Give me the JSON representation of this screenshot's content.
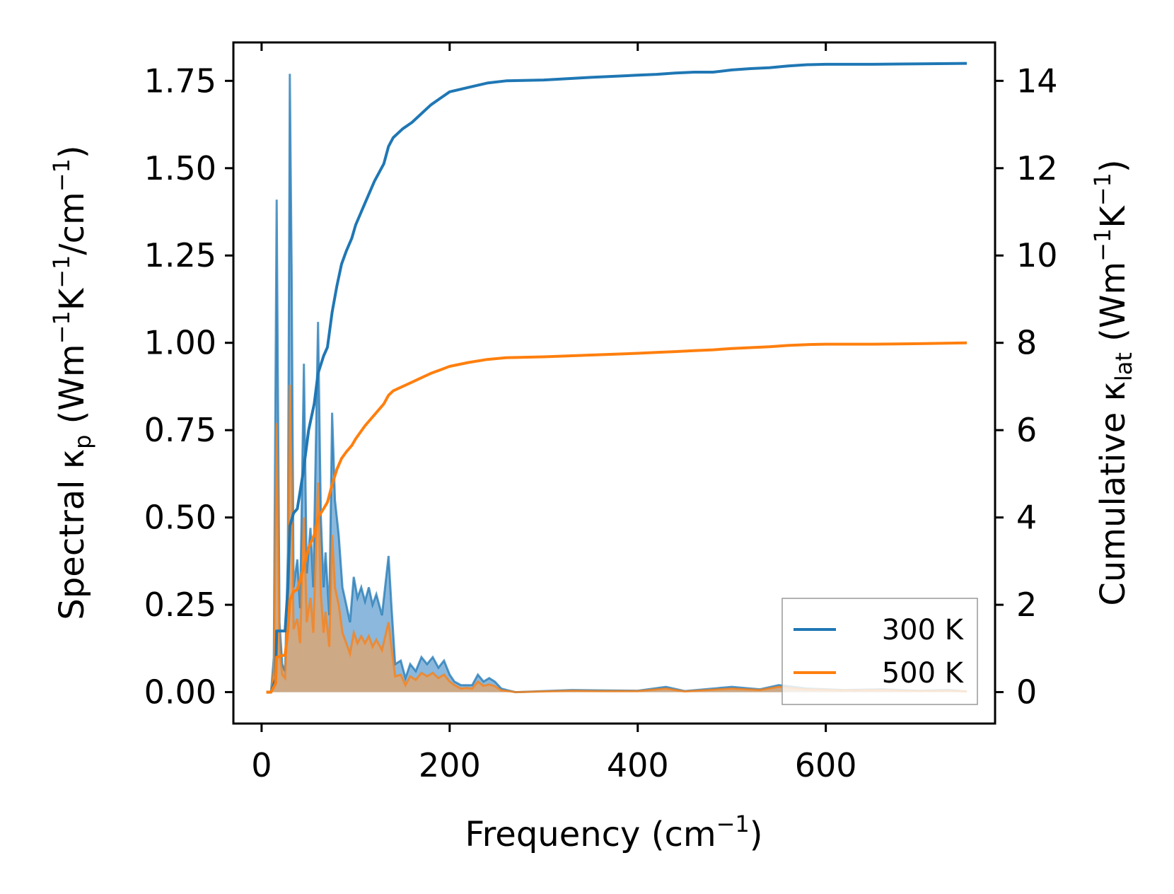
{
  "chart_data": {
    "type": "area",
    "x_axis": {
      "label": "Frequency (cm",
      "label_sup": "−1",
      "label_end": ")",
      "range": [
        -30,
        780
      ],
      "ticks": [
        0,
        200,
        400,
        600
      ],
      "tick_labels": [
        "0",
        "200",
        "400",
        "600"
      ]
    },
    "y_left": {
      "label_parts": [
        "Spectral κ",
        "p",
        " (Wm",
        "−1",
        "K",
        "−1",
        "/cm",
        "−1",
        ")"
      ],
      "range": [
        -0.09,
        1.86
      ],
      "ticks": [
        0,
        0.25,
        0.5,
        0.75,
        1.0,
        1.25,
        1.5,
        1.75
      ],
      "tick_labels": [
        "0.00",
        "0.25",
        "0.50",
        "0.75",
        "1.00",
        "1.25",
        "1.50",
        "1.75"
      ]
    },
    "y_right": {
      "label_parts": [
        "Cumulative κ",
        "lat",
        " (Wm",
        "−1",
        "K",
        "−1",
        ")"
      ],
      "range": [
        -0.72,
        14.88
      ],
      "ticks": [
        0,
        2,
        4,
        6,
        8,
        10,
        12,
        14
      ],
      "tick_labels": [
        "0",
        "2",
        "4",
        "6",
        "8",
        "10",
        "12",
        "14"
      ]
    },
    "legend": {
      "position": "lower-right",
      "entries": [
        "300 K",
        "500 K"
      ]
    },
    "colors": {
      "s300": "#1f77b4",
      "s500": "#ff7f0e",
      "fill300": "#8bb8dc",
      "fill500": "#d8a677"
    },
    "spectral": [
      {
        "name": "300 K",
        "points": [
          [
            5,
            0
          ],
          [
            10,
            0
          ],
          [
            13,
            0.1
          ],
          [
            16,
            1.41
          ],
          [
            19,
            0.2
          ],
          [
            22,
            0.08
          ],
          [
            25,
            0.06
          ],
          [
            28,
            0.4
          ],
          [
            30,
            1.77
          ],
          [
            32,
            1.2
          ],
          [
            34,
            0.3
          ],
          [
            38,
            0.38
          ],
          [
            41,
            0.24
          ],
          [
            45,
            0.94
          ],
          [
            48,
            0.34
          ],
          [
            52,
            0.47
          ],
          [
            55,
            0.3
          ],
          [
            60,
            1.06
          ],
          [
            63,
            0.5
          ],
          [
            66,
            0.3
          ],
          [
            68,
            0.4
          ],
          [
            72,
            0.22
          ],
          [
            75,
            0.8
          ],
          [
            78,
            0.55
          ],
          [
            82,
            0.45
          ],
          [
            86,
            0.3
          ],
          [
            90,
            0.25
          ],
          [
            94,
            0.2
          ],
          [
            98,
            0.33
          ],
          [
            102,
            0.27
          ],
          [
            106,
            0.3
          ],
          [
            110,
            0.26
          ],
          [
            114,
            0.3
          ],
          [
            118,
            0.25
          ],
          [
            122,
            0.28
          ],
          [
            128,
            0.22
          ],
          [
            135,
            0.39
          ],
          [
            138,
            0.25
          ],
          [
            142,
            0.08
          ],
          [
            148,
            0.09
          ],
          [
            153,
            0.04
          ],
          [
            158,
            0.08
          ],
          [
            164,
            0.06
          ],
          [
            170,
            0.1
          ],
          [
            176,
            0.08
          ],
          [
            182,
            0.1
          ],
          [
            188,
            0.07
          ],
          [
            194,
            0.09
          ],
          [
            200,
            0.05
          ],
          [
            205,
            0.03
          ],
          [
            212,
            0.02
          ],
          [
            218,
            0.02
          ],
          [
            224,
            0.02
          ],
          [
            230,
            0.05
          ],
          [
            236,
            0.03
          ],
          [
            242,
            0.04
          ],
          [
            248,
            0.03
          ],
          [
            255,
            0.01
          ],
          [
            262,
            0.005
          ],
          [
            270,
            0
          ],
          [
            300,
            0.003
          ],
          [
            330,
            0.006
          ],
          [
            360,
            0.005
          ],
          [
            400,
            0.004
          ],
          [
            430,
            0.015
          ],
          [
            450,
            0.003
          ],
          [
            500,
            0.015
          ],
          [
            530,
            0.008
          ],
          [
            550,
            0.02
          ],
          [
            580,
            0.01
          ],
          [
            620,
            0.006
          ],
          [
            660,
            0.008
          ],
          [
            700,
            0.004
          ],
          [
            730,
            0.006
          ],
          [
            750,
            0.002
          ]
        ]
      },
      {
        "name": "500 K",
        "points": [
          [
            5,
            0
          ],
          [
            10,
            0
          ],
          [
            13,
            0.06
          ],
          [
            16,
            0.77
          ],
          [
            19,
            0.12
          ],
          [
            22,
            0.05
          ],
          [
            25,
            0.04
          ],
          [
            28,
            0.24
          ],
          [
            30,
            0.88
          ],
          [
            32,
            0.6
          ],
          [
            34,
            0.18
          ],
          [
            38,
            0.21
          ],
          [
            41,
            0.14
          ],
          [
            45,
            0.5
          ],
          [
            48,
            0.2
          ],
          [
            52,
            0.27
          ],
          [
            55,
            0.17
          ],
          [
            60,
            0.6
          ],
          [
            63,
            0.28
          ],
          [
            66,
            0.17
          ],
          [
            68,
            0.23
          ],
          [
            72,
            0.13
          ],
          [
            75,
            0.45
          ],
          [
            78,
            0.3
          ],
          [
            82,
            0.25
          ],
          [
            86,
            0.17
          ],
          [
            90,
            0.14
          ],
          [
            94,
            0.11
          ],
          [
            98,
            0.17
          ],
          [
            102,
            0.14
          ],
          [
            106,
            0.16
          ],
          [
            110,
            0.14
          ],
          [
            114,
            0.16
          ],
          [
            118,
            0.13
          ],
          [
            122,
            0.15
          ],
          [
            128,
            0.12
          ],
          [
            135,
            0.2
          ],
          [
            138,
            0.13
          ],
          [
            142,
            0.045
          ],
          [
            148,
            0.05
          ],
          [
            153,
            0.02
          ],
          [
            158,
            0.045
          ],
          [
            164,
            0.035
          ],
          [
            170,
            0.055
          ],
          [
            176,
            0.045
          ],
          [
            182,
            0.055
          ],
          [
            188,
            0.04
          ],
          [
            194,
            0.05
          ],
          [
            200,
            0.03
          ],
          [
            205,
            0.02
          ],
          [
            212,
            0.01
          ],
          [
            218,
            0.012
          ],
          [
            224,
            0.01
          ],
          [
            230,
            0.03
          ],
          [
            236,
            0.018
          ],
          [
            242,
            0.022
          ],
          [
            248,
            0.017
          ],
          [
            255,
            0.005
          ],
          [
            262,
            0.003
          ],
          [
            270,
            0
          ],
          [
            300,
            0.002
          ],
          [
            330,
            0.004
          ],
          [
            360,
            0.003
          ],
          [
            400,
            0.003
          ],
          [
            430,
            0.01
          ],
          [
            450,
            0.002
          ],
          [
            500,
            0.01
          ],
          [
            530,
            0.006
          ],
          [
            550,
            0.015
          ],
          [
            580,
            0.008
          ],
          [
            620,
            0.005
          ],
          [
            660,
            0.006
          ],
          [
            700,
            0.003
          ],
          [
            730,
            0.004
          ],
          [
            750,
            0.002
          ]
        ]
      }
    ],
    "cumulative": [
      {
        "name": "300 K",
        "points": [
          [
            5,
            0
          ],
          [
            10,
            0
          ],
          [
            15,
            0.3
          ],
          [
            16,
            1.4
          ],
          [
            25,
            1.4
          ],
          [
            28,
            2.4
          ],
          [
            30,
            3.8
          ],
          [
            34,
            4.1
          ],
          [
            38,
            4.2
          ],
          [
            44,
            5.0
          ],
          [
            50,
            6.0
          ],
          [
            56,
            6.6
          ],
          [
            60,
            7.3
          ],
          [
            66,
            7.7
          ],
          [
            70,
            7.9
          ],
          [
            75,
            8.7
          ],
          [
            80,
            9.3
          ],
          [
            85,
            9.8
          ],
          [
            90,
            10.1
          ],
          [
            96,
            10.4
          ],
          [
            100,
            10.7
          ],
          [
            110,
            11.2
          ],
          [
            120,
            11.7
          ],
          [
            130,
            12.1
          ],
          [
            135,
            12.5
          ],
          [
            140,
            12.7
          ],
          [
            150,
            12.9
          ],
          [
            160,
            13.05
          ],
          [
            170,
            13.25
          ],
          [
            180,
            13.45
          ],
          [
            190,
            13.6
          ],
          [
            200,
            13.75
          ],
          [
            220,
            13.85
          ],
          [
            240,
            13.95
          ],
          [
            260,
            14.0
          ],
          [
            300,
            14.02
          ],
          [
            350,
            14.08
          ],
          [
            400,
            14.13
          ],
          [
            420,
            14.15
          ],
          [
            440,
            14.18
          ],
          [
            460,
            14.2
          ],
          [
            480,
            14.2
          ],
          [
            500,
            14.25
          ],
          [
            520,
            14.28
          ],
          [
            540,
            14.3
          ],
          [
            560,
            14.34
          ],
          [
            580,
            14.37
          ],
          [
            600,
            14.38
          ],
          [
            650,
            14.38
          ],
          [
            700,
            14.39
          ],
          [
            750,
            14.4
          ]
        ]
      },
      {
        "name": "500 K",
        "points": [
          [
            5,
            0
          ],
          [
            10,
            0
          ],
          [
            15,
            0.2
          ],
          [
            16,
            0.8
          ],
          [
            25,
            0.85
          ],
          [
            28,
            1.4
          ],
          [
            30,
            2.1
          ],
          [
            34,
            2.3
          ],
          [
            38,
            2.35
          ],
          [
            44,
            2.8
          ],
          [
            50,
            3.3
          ],
          [
            56,
            3.6
          ],
          [
            60,
            4.0
          ],
          [
            66,
            4.2
          ],
          [
            70,
            4.35
          ],
          [
            75,
            4.75
          ],
          [
            80,
            5.1
          ],
          [
            85,
            5.35
          ],
          [
            90,
            5.5
          ],
          [
            96,
            5.65
          ],
          [
            100,
            5.8
          ],
          [
            110,
            6.1
          ],
          [
            120,
            6.35
          ],
          [
            130,
            6.6
          ],
          [
            135,
            6.8
          ],
          [
            140,
            6.9
          ],
          [
            150,
            7.0
          ],
          [
            160,
            7.1
          ],
          [
            170,
            7.2
          ],
          [
            180,
            7.3
          ],
          [
            190,
            7.38
          ],
          [
            200,
            7.46
          ],
          [
            220,
            7.55
          ],
          [
            240,
            7.62
          ],
          [
            260,
            7.66
          ],
          [
            300,
            7.68
          ],
          [
            350,
            7.72
          ],
          [
            400,
            7.76
          ],
          [
            420,
            7.78
          ],
          [
            440,
            7.8
          ],
          [
            460,
            7.82
          ],
          [
            480,
            7.84
          ],
          [
            500,
            7.87
          ],
          [
            520,
            7.89
          ],
          [
            540,
            7.91
          ],
          [
            560,
            7.94
          ],
          [
            580,
            7.96
          ],
          [
            600,
            7.97
          ],
          [
            650,
            7.97
          ],
          [
            700,
            7.98
          ],
          [
            750,
            8.0
          ]
        ]
      }
    ]
  }
}
